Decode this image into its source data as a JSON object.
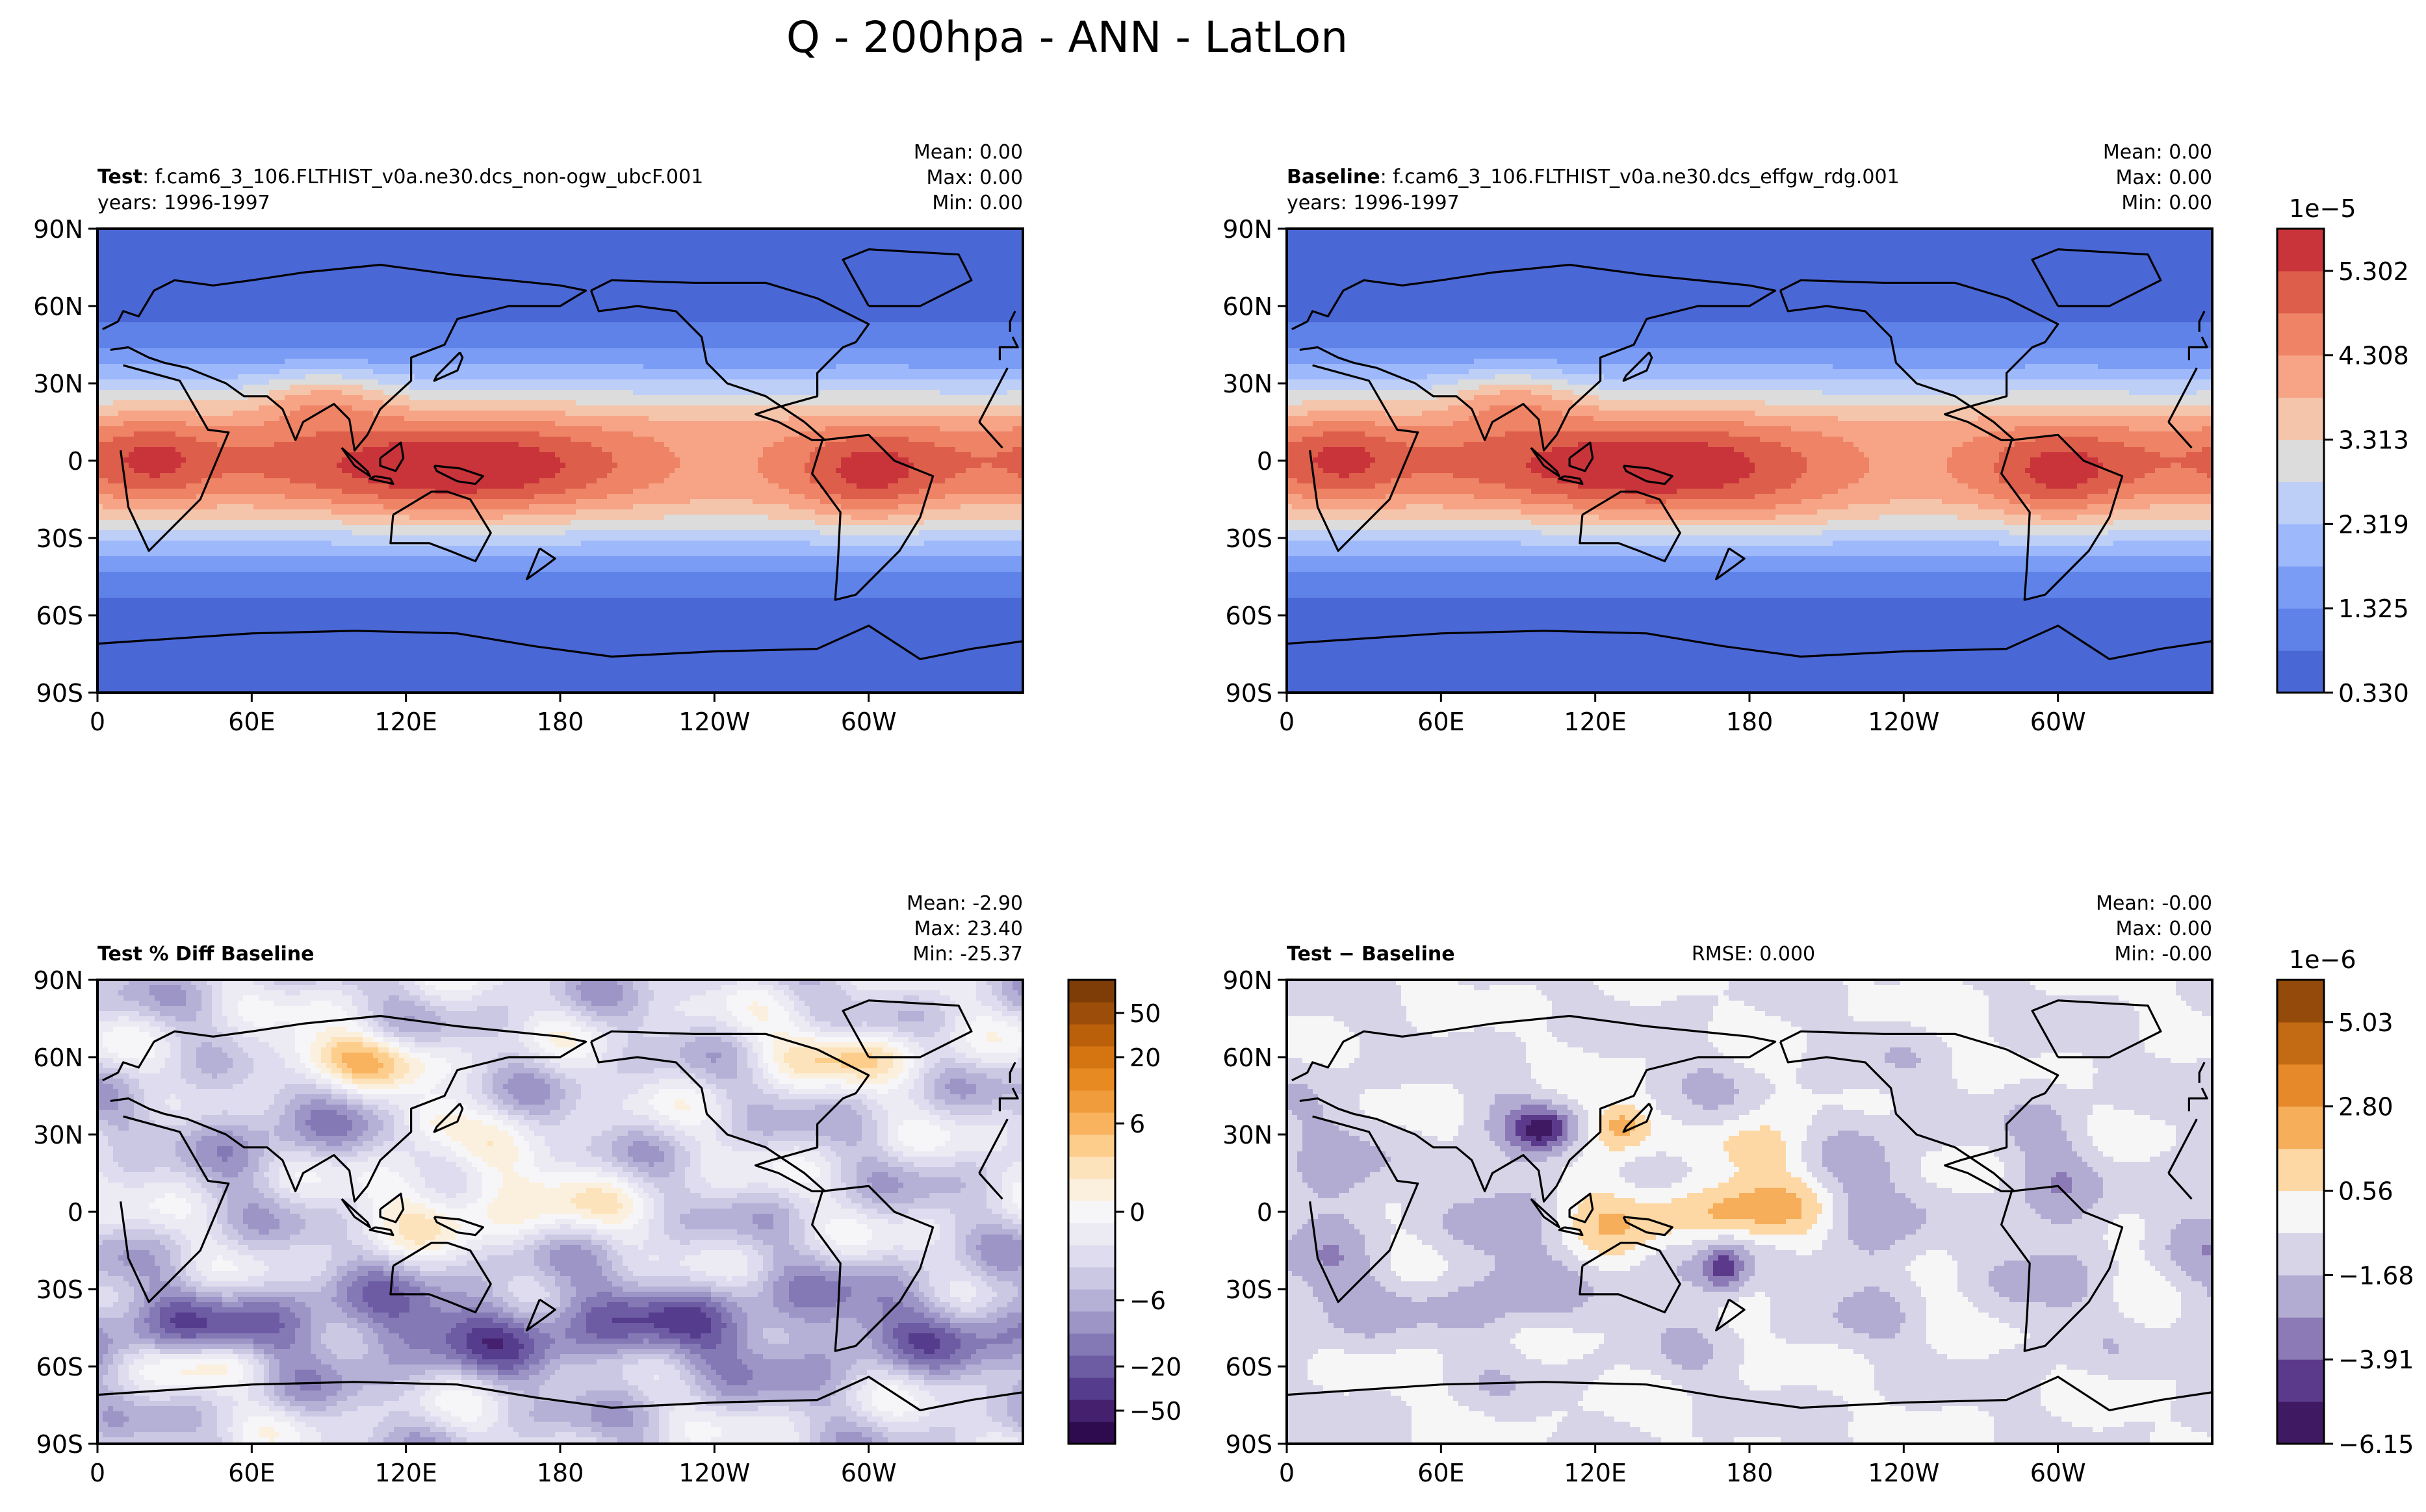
{
  "figure": {
    "title": "Q - 200hpa - ANN - LatLon"
  },
  "axes": {
    "lat_labels": [
      "90N",
      "60N",
      "30N",
      "0",
      "30S",
      "60S",
      "90S"
    ],
    "lon_labels": [
      "0",
      "60E",
      "120E",
      "180",
      "120W",
      "60W"
    ]
  },
  "chart_data": [
    {
      "type": "heatmap",
      "panel": "test",
      "title_bold": "Test",
      "title_rest": ": f.cam6_3_106.FLTHIST_v0a.ne30.dcs_non-ogw_ubcF.001",
      "subtitle": "years: 1996-1997",
      "stats": {
        "mean": "Mean:  0.00",
        "max": "Max:  0.00",
        "min": "Min:  0.00"
      },
      "colormap": "coolwarm",
      "xlim": [
        0,
        360
      ],
      "ylim": [
        -90,
        90
      ]
    },
    {
      "type": "heatmap",
      "panel": "baseline",
      "title_bold": "Baseline",
      "title_rest": ": f.cam6_3_106.FLTHIST_v0a.ne30.dcs_effgw_rdg.001",
      "subtitle": "years: 1996-1997",
      "stats": {
        "mean": "Mean:  0.00",
        "max": "Max:  0.00",
        "min": "Min:  0.00"
      },
      "colormap": "coolwarm",
      "xlim": [
        0,
        360
      ],
      "ylim": [
        -90,
        90
      ],
      "colorbar": {
        "offset_label": "1e−5",
        "ticks": [
          "0.330",
          "1.325",
          "2.319",
          "3.313",
          "4.308",
          "5.302"
        ],
        "colors": [
          "#4a67d6",
          "#5e82e8",
          "#7b9cf5",
          "#9db8fb",
          "#bdcff7",
          "#dcdcdc",
          "#f4c4ab",
          "#f6a485",
          "#ee8366",
          "#dd5e4a",
          "#c9343a"
        ]
      }
    },
    {
      "type": "heatmap",
      "panel": "pct_diff",
      "title_bold": "Test % Diff Baseline",
      "stats": {
        "mean": "Mean: -2.90",
        "max": "Max: 23.40",
        "min": "Min: -25.37"
      },
      "colormap": "PuOr_r",
      "xlim": [
        0,
        360
      ],
      "ylim": [
        -90,
        90
      ],
      "colorbar": {
        "ticks": [
          "−50",
          "−20",
          "−6",
          "0",
          "6",
          "20",
          "50"
        ],
        "colors": [
          "#2d0b4e",
          "#44206f",
          "#553c8c",
          "#6d5ba4",
          "#8479b5",
          "#9c95c6",
          "#b4b0d6",
          "#cbc8e3",
          "#dedcee",
          "#ecebf4",
          "#f6f6f9",
          "#fbf0de",
          "#fde3bb",
          "#fdcd8b",
          "#f9b35f",
          "#f19c3c",
          "#e88a22",
          "#d57512",
          "#ba600b",
          "#9c4d09",
          "#7e3d07"
        ]
      }
    },
    {
      "type": "heatmap",
      "panel": "abs_diff",
      "title_bold": "Test − Baseline",
      "rmse": "RMSE: 0.000",
      "stats": {
        "mean": "Mean: -0.00",
        "max": "Max:  0.00",
        "min": "Min: -0.00"
      },
      "colormap": "PuOr_r",
      "xlim": [
        0,
        360
      ],
      "ylim": [
        -90,
        90
      ],
      "colorbar": {
        "offset_label": "1e−6",
        "ticks": [
          "−6.15",
          "−3.91",
          "−1.68",
          "0.56",
          "2.80",
          "5.03"
        ],
        "colors": [
          "#3f1a63",
          "#5c3a8b",
          "#8b7ab5",
          "#b3acd2",
          "#d7d4e8",
          "#f6f6f6",
          "#fdd7a4",
          "#f6ae5a",
          "#e6892a",
          "#c26a14",
          "#944a0a"
        ]
      }
    }
  ]
}
